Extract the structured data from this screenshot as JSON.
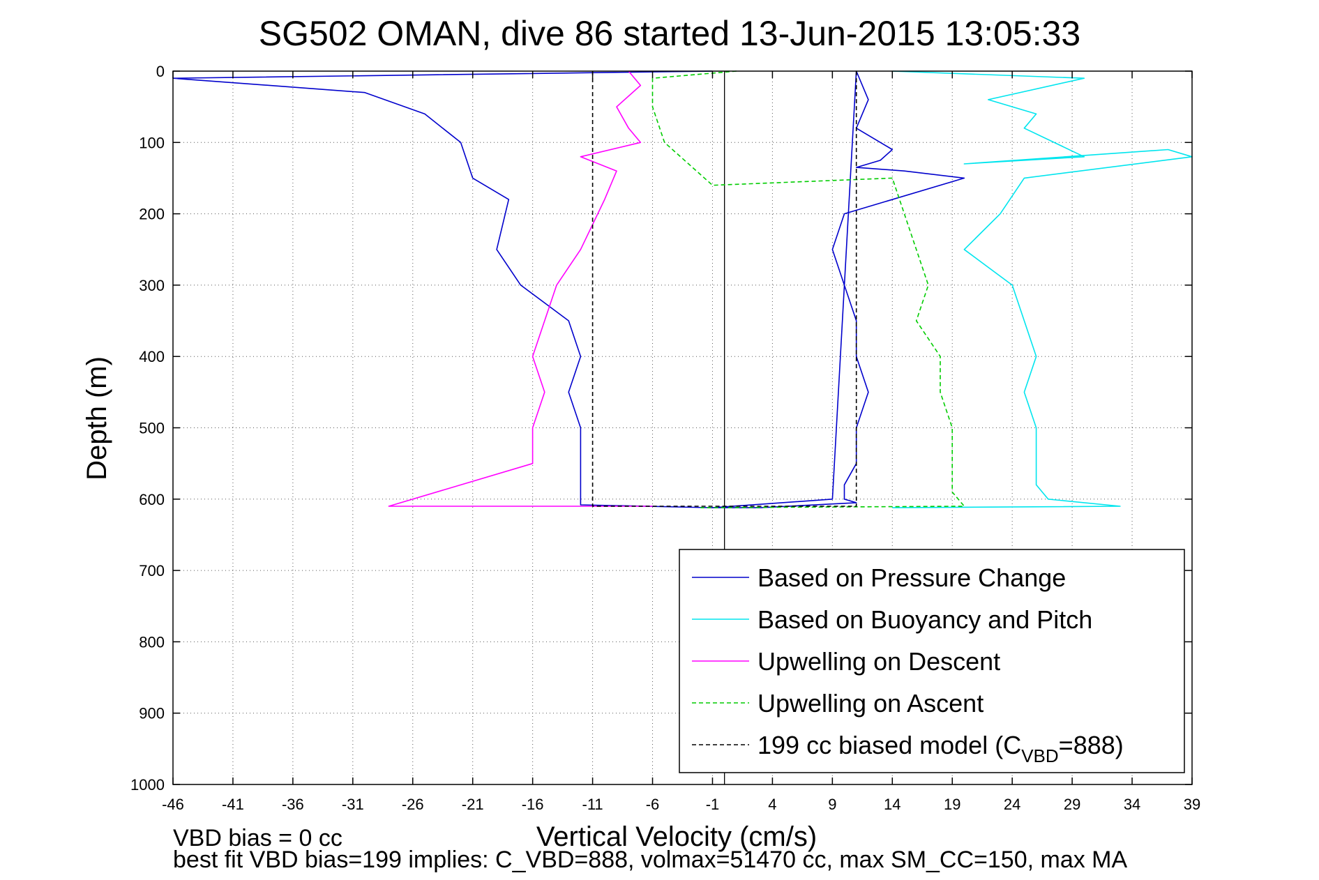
{
  "chart_data": {
    "type": "line",
    "title": "SG502 OMAN, dive 86 started 13-Jun-2015 13:05:33",
    "xlabel": "Vertical Velocity (cm/s)",
    "ylabel": "Depth (m)",
    "xlim": [
      -46,
      39
    ],
    "ylim": [
      0,
      1000
    ],
    "y_reversed": true,
    "grid": true,
    "legend_position": "bottom-right",
    "xticks": [
      "-46",
      "-41",
      "-36",
      "-31",
      "-26",
      "-21",
      "-16",
      "-11",
      "-6",
      "-1",
      "4",
      "9",
      "14",
      "19",
      "24",
      "29",
      "34",
      "39"
    ],
    "yticks": [
      "0",
      "100",
      "200",
      "300",
      "400",
      "500",
      "600",
      "700",
      "800",
      "900",
      "1000"
    ],
    "series": [
      {
        "name": "Based on Pressure Change",
        "color": "#0000cc",
        "style": "solid",
        "x": [
          -1,
          -46,
          -30,
          -25,
          -22,
          -21,
          -18,
          -19,
          -17,
          -13,
          -12,
          -13,
          -12,
          -12,
          -12,
          -1,
          9,
          11,
          12,
          11,
          14,
          13,
          11,
          15,
          20,
          10,
          9,
          10,
          11,
          11,
          12,
          11,
          11,
          10,
          10,
          11,
          3,
          -1
        ],
        "y": [
          0,
          10,
          30,
          60,
          100,
          150,
          180,
          250,
          300,
          350,
          400,
          450,
          500,
          550,
          608,
          612,
          600,
          0,
          40,
          80,
          110,
          125,
          135,
          140,
          150,
          200,
          250,
          300,
          350,
          400,
          450,
          500,
          550,
          580,
          600,
          605,
          612,
          612
        ]
      },
      {
        "name": "Based on Buoyancy and Pitch",
        "color": "#00e5ee",
        "style": "solid",
        "x": [
          14,
          30,
          22,
          26,
          25,
          30,
          20,
          37,
          39,
          25,
          23,
          20,
          24,
          25,
          26,
          25,
          26,
          26,
          26,
          27,
          33,
          14
        ],
        "y": [
          0,
          10,
          40,
          60,
          80,
          120,
          130,
          110,
          120,
          150,
          200,
          250,
          300,
          350,
          400,
          450,
          500,
          550,
          580,
          600,
          610,
          612
        ]
      },
      {
        "name": "Upwelling on Descent",
        "color": "#ff00ff",
        "style": "solid",
        "x": [
          -8,
          -7,
          -9,
          -8,
          -7,
          -12,
          -9,
          -10,
          -12,
          -14,
          -15,
          -16,
          -15,
          -16,
          -16,
          -28,
          -6
        ],
        "y": [
          0,
          20,
          50,
          80,
          100,
          120,
          140,
          180,
          250,
          300,
          350,
          400,
          450,
          500,
          550,
          610,
          610
        ]
      },
      {
        "name": "Upwelling on Ascent",
        "color": "#00cc00",
        "style": "dashed",
        "x": [
          1,
          -6,
          -6,
          -5,
          -3,
          -1,
          14,
          15,
          16,
          17,
          16,
          18,
          18,
          19,
          19,
          19,
          20,
          -2
        ],
        "y": [
          0,
          10,
          50,
          100,
          130,
          160,
          150,
          200,
          250,
          300,
          350,
          400,
          450,
          500,
          550,
          590,
          610,
          612
        ]
      },
      {
        "name": "199 cc biased model (C",
        "subscript": "VBD",
        "suffix": "=888)",
        "color": "#000000",
        "style": "dashed",
        "x": [
          -11,
          -11,
          11,
          11
        ],
        "y": [
          0,
          610,
          610,
          0
        ]
      }
    ],
    "zero_line": {
      "x": 0,
      "color": "#000000"
    }
  },
  "footer": {
    "line1": "VBD bias = 0 cc",
    "line2": "best fit VBD bias=199 implies: C_VBD=888, volmax=51470 cc, max SM_CC=150, max MA"
  }
}
